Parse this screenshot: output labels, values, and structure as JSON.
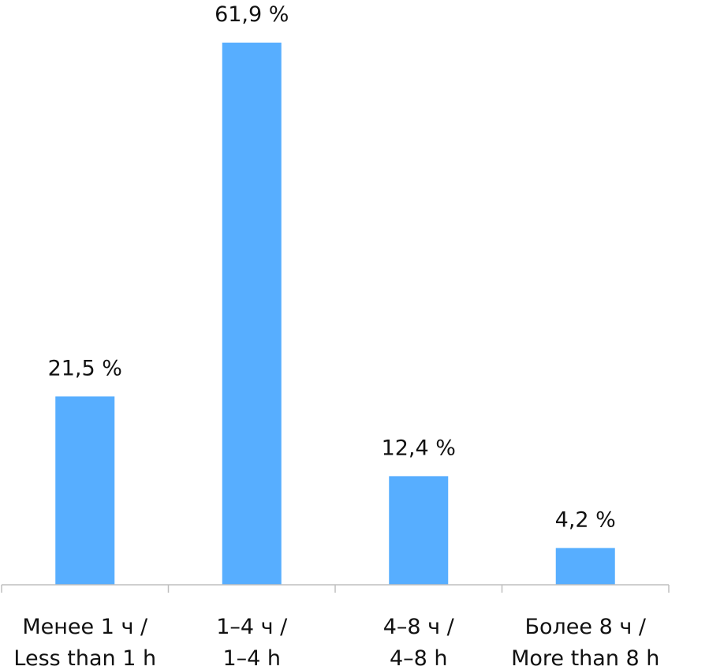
{
  "chart_data": {
    "type": "bar",
    "categories": [
      [
        "Менее 1 ч /",
        "Less than 1 h"
      ],
      [
        "1–4 ч /",
        "1–4 h"
      ],
      [
        "4–8 ч /",
        "4–8 h"
      ],
      [
        "Более 8 ч /",
        "More than 8 h"
      ]
    ],
    "values": [
      21.5,
      61.9,
      12.4,
      4.2
    ],
    "value_labels": [
      "21,5 %",
      "61,9 %",
      "12,4 %",
      "4,2 %"
    ],
    "title": "",
    "xlabel": "",
    "ylabel": "",
    "ylim": [
      0,
      61.9
    ],
    "grid": false,
    "y_axis_visible": false,
    "colors": {
      "bar": "#57AEFF",
      "axis": "#BFBFBF",
      "text": "#111111"
    }
  }
}
